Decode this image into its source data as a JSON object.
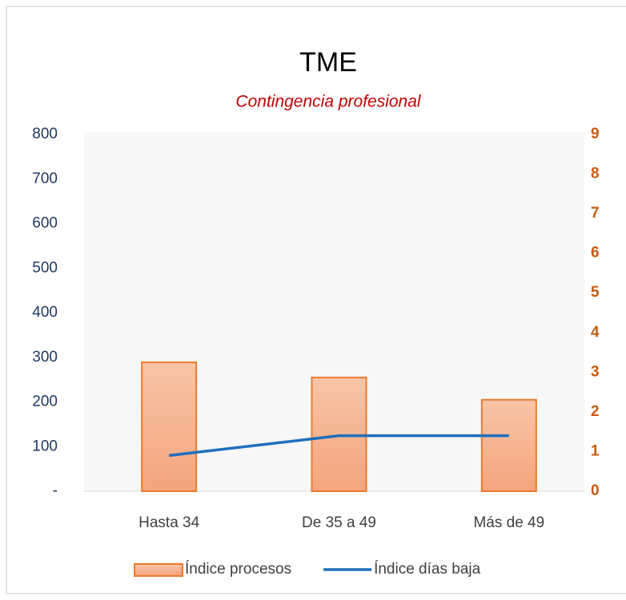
{
  "chart_data": {
    "type": "bar",
    "title": "TME",
    "subtitle": "Contingencia profesional",
    "categories": [
      "Hasta 34",
      "De 35 a 49",
      "Más de 49"
    ],
    "series": [
      {
        "name": "Índice procesos",
        "type": "bar",
        "color": "#f4b183",
        "values": [
          289,
          255,
          205
        ]
      },
      {
        "name": "Índice días baja",
        "type": "line",
        "axis": "y2",
        "color": "#1f6fbf",
        "values": [
          0.9,
          1.4,
          1.4
        ]
      }
    ],
    "ylim": [
      0,
      800
    ],
    "yticks": [
      {
        "value": 0,
        "label": "-"
      },
      100,
      200,
      300,
      400,
      500,
      600,
      700,
      800
    ],
    "y2lim": [
      0,
      9
    ],
    "y2ticks": [
      0,
      1,
      2,
      3,
      4,
      5,
      6,
      7,
      8,
      9
    ],
    "legend": "bottom"
  }
}
